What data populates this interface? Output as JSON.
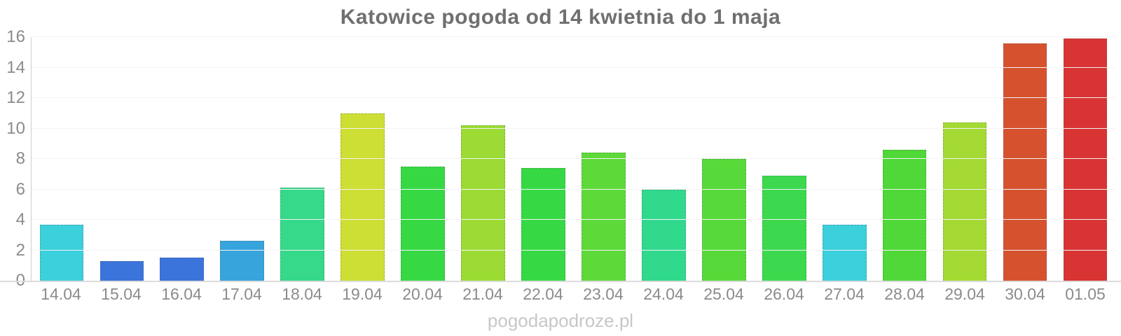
{
  "title": "Katowice pogoda od 14 kwietnia do 1 maja",
  "watermark": "pogodapodroze.pl",
  "chart_data": {
    "type": "bar",
    "title": "Katowice pogoda od 14 kwietnia do 1 maja",
    "categories": [
      "14.04",
      "15.04",
      "16.04",
      "17.04",
      "18.04",
      "19.04",
      "20.04",
      "21.04",
      "22.04",
      "23.04",
      "24.04",
      "25.04",
      "26.04",
      "27.04",
      "28.04",
      "29.04",
      "30.04",
      "01.05"
    ],
    "values": [
      3.7,
      1.3,
      1.5,
      2.6,
      6.1,
      11.0,
      7.5,
      10.2,
      7.4,
      8.4,
      6.0,
      8.0,
      6.9,
      3.7,
      8.6,
      10.4,
      15.6,
      15.9
    ],
    "bar_colors": [
      "#3ccfdc",
      "#3b74db",
      "#3b74db",
      "#38a4dc",
      "#35d989",
      "#cdde35",
      "#36d944",
      "#9bdb34",
      "#36d944",
      "#5ed93a",
      "#30d98c",
      "#58d93a",
      "#3cd94e",
      "#3ccfdc",
      "#4fd838",
      "#a4da33",
      "#d6522f",
      "#d93434"
    ],
    "xlabel": "",
    "ylabel": "",
    "ylim": [
      0,
      16
    ],
    "yticks": [
      0,
      2,
      4,
      6,
      8,
      10,
      12,
      14,
      16
    ],
    "grid": "horizontal",
    "legend_position": "none",
    "watermark": "pogodapodroze.pl",
    "colors": {
      "title": "#6f6f6f",
      "axis_labels": "#8b8b8b",
      "gridline": "#f3f3f3",
      "axis_line": "#cfcfcf",
      "baseline": "#dcdcdc",
      "watermark": "#c7c7c7",
      "background": "#ffffff"
    }
  }
}
